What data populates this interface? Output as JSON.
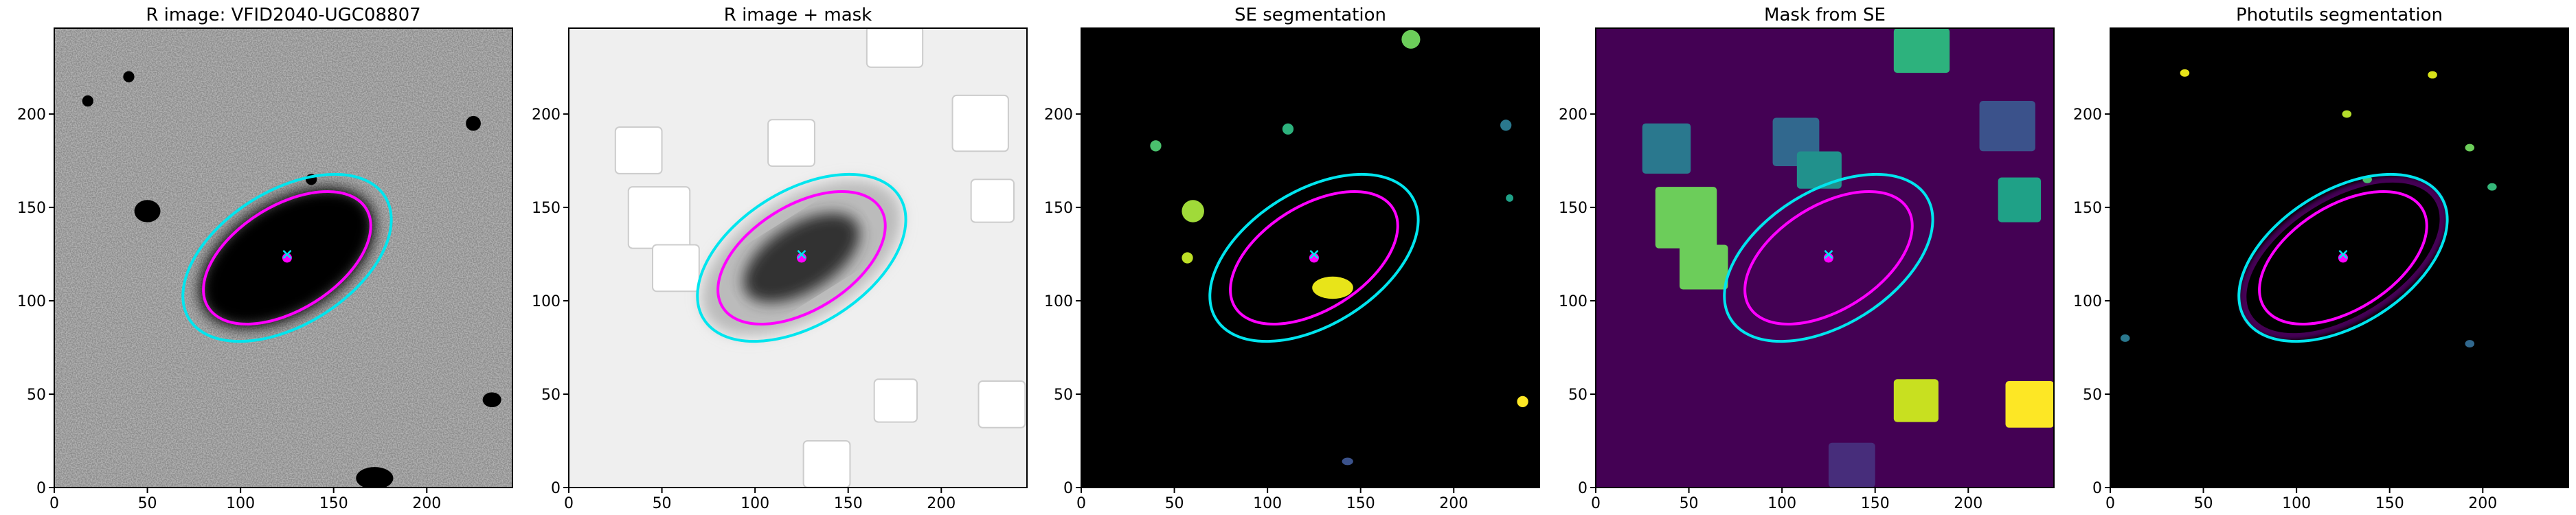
{
  "chart_data": [
    {
      "type": "image",
      "title": "R image: VFID2040-UGC08807",
      "xlim": [
        0,
        246
      ],
      "ylim": [
        0,
        246
      ],
      "xticks": [
        0,
        50,
        100,
        150,
        200
      ],
      "yticks": [
        0,
        50,
        100,
        150,
        200
      ],
      "ellipses": [
        {
          "color": "#00e5ee",
          "x": 125,
          "y": 123,
          "a": 62,
          "b": 36,
          "angle": 32
        },
        {
          "color": "#ff00ff",
          "x": 125,
          "y": 123,
          "a": 50,
          "b": 28,
          "angle": 32
        }
      ]
    },
    {
      "type": "image",
      "title": "R image + mask",
      "xlim": [
        0,
        246
      ],
      "ylim": [
        0,
        246
      ],
      "xticks": [
        0,
        50,
        100,
        150,
        200
      ],
      "yticks": [
        0,
        50,
        100,
        150,
        200
      ],
      "ellipses": [
        {
          "color": "#00e5ee",
          "x": 125,
          "y": 123,
          "a": 62,
          "b": 36,
          "angle": 32
        },
        {
          "color": "#ff00ff",
          "x": 125,
          "y": 123,
          "a": 50,
          "b": 28,
          "angle": 32
        }
      ]
    },
    {
      "type": "image",
      "title": "SE segmentation",
      "xlim": [
        0,
        246
      ],
      "ylim": [
        0,
        246
      ],
      "xticks": [
        0,
        50,
        100,
        150,
        200
      ],
      "yticks": [
        0,
        50,
        100,
        150,
        200
      ],
      "ellipses": [
        {
          "color": "#00e5ee",
          "x": 125,
          "y": 123,
          "a": 62,
          "b": 36,
          "angle": 32
        },
        {
          "color": "#ff00ff",
          "x": 125,
          "y": 123,
          "a": 50,
          "b": 28,
          "angle": 32
        }
      ]
    },
    {
      "type": "image",
      "title": "Mask from SE",
      "xlim": [
        0,
        246
      ],
      "ylim": [
        0,
        246
      ],
      "xticks": [
        0,
        50,
        100,
        150,
        200
      ],
      "yticks": [
        0,
        50,
        100,
        150,
        200
      ],
      "ellipses": [
        {
          "color": "#00e5ee",
          "x": 125,
          "y": 123,
          "a": 62,
          "b": 36,
          "angle": 32
        },
        {
          "color": "#ff00ff",
          "x": 125,
          "y": 123,
          "a": 50,
          "b": 28,
          "angle": 32
        }
      ]
    },
    {
      "type": "image",
      "title": "Photutils segmentation",
      "xlim": [
        0,
        246
      ],
      "ylim": [
        0,
        246
      ],
      "xticks": [
        0,
        50,
        100,
        150,
        200
      ],
      "yticks": [
        0,
        50,
        100,
        150,
        200
      ],
      "ellipses": [
        {
          "color": "#00e5ee",
          "x": 125,
          "y": 123,
          "a": 62,
          "b": 36,
          "angle": 32
        },
        {
          "color": "#ff00ff",
          "x": 125,
          "y": 123,
          "a": 50,
          "b": 28,
          "angle": 32
        }
      ]
    }
  ]
}
